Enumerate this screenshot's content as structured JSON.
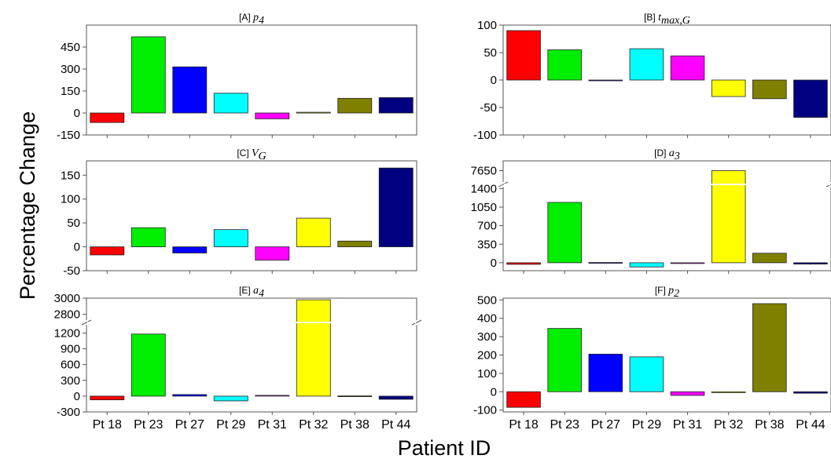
{
  "figure": {
    "ylabel": "Percentage Change",
    "xlabel": "Patient ID"
  },
  "chart_data": [
    {
      "type": "bar",
      "title": "[A] p4",
      "title_prefix": "[A]",
      "title_symbol": "p",
      "title_sub": "4",
      "categories": [
        "Pt 18",
        "Pt 23",
        "Pt 27",
        "Pt 29",
        "Pt 31",
        "Pt 32",
        "Pt 38",
        "Pt 44"
      ],
      "values": [
        -65,
        520,
        315,
        135,
        -40,
        5,
        100,
        105
      ],
      "colors": [
        "#ff0000",
        "#00ee00",
        "#0000ff",
        "#00ffff",
        "#ff00ff",
        "#ffff00",
        "#808000",
        "#000080"
      ],
      "yticks": [
        -150,
        0,
        150,
        300,
        450
      ],
      "ylim": [
        -150,
        600
      ],
      "xtick_labels_shown": false
    },
    {
      "type": "bar",
      "title": "[B] tmax,G",
      "title_prefix": "[B]",
      "title_symbol": "t",
      "title_sub": "max,G",
      "categories": [
        "Pt 18",
        "Pt 23",
        "Pt 27",
        "Pt 29",
        "Pt 31",
        "Pt 32",
        "Pt 38",
        "Pt 44"
      ],
      "values": [
        90,
        55,
        -1,
        57,
        44,
        -30,
        -34,
        -68
      ],
      "colors": [
        "#ff0000",
        "#00ee00",
        "#0000ff",
        "#00ffff",
        "#ff00ff",
        "#ffff00",
        "#808000",
        "#000080"
      ],
      "yticks": [
        -100,
        -50,
        0,
        50,
        100
      ],
      "ylim": [
        -100,
        100
      ],
      "xtick_labels_shown": false
    },
    {
      "type": "bar",
      "title": "[C] VG",
      "title_prefix": "[C]",
      "title_symbol": "V",
      "title_sub": "G",
      "categories": [
        "Pt 18",
        "Pt 23",
        "Pt 27",
        "Pt 29",
        "Pt 31",
        "Pt 32",
        "Pt 38",
        "Pt 44"
      ],
      "values": [
        -17,
        40,
        -13,
        36,
        -28,
        60,
        12,
        165
      ],
      "colors": [
        "#ff0000",
        "#00ee00",
        "#0000ff",
        "#00ffff",
        "#ff00ff",
        "#ffff00",
        "#808000",
        "#000080"
      ],
      "yticks": [
        -50,
        0,
        50,
        100,
        150
      ],
      "ylim": [
        -50,
        180
      ],
      "xtick_labels_shown": false
    },
    {
      "type": "bar",
      "title": "[D] a3",
      "title_prefix": "[D]",
      "title_symbol": "a",
      "title_sub": "3",
      "categories": [
        "Pt 18",
        "Pt 23",
        "Pt 27",
        "Pt 29",
        "Pt 31",
        "Pt 32",
        "Pt 38",
        "Pt 44"
      ],
      "values": [
        -30,
        1140,
        5,
        -80,
        -10,
        7650,
        180,
        -25
      ],
      "colors": [
        "#ff0000",
        "#00ee00",
        "#0000ff",
        "#00ffff",
        "#ff00ff",
        "#ffff00",
        "#808000",
        "#000080"
      ],
      "yticks": [
        0,
        350,
        700,
        1050,
        1400,
        7650
      ],
      "ylim": [
        -150,
        7700
      ],
      "axis_break": {
        "lower": [
          -150,
          1480
        ],
        "upper": [
          7580,
          7700
        ]
      },
      "xtick_labels_shown": false
    },
    {
      "type": "bar",
      "title": "[E] a4",
      "title_prefix": "[E]",
      "title_symbol": "a",
      "title_sub": "4",
      "categories": [
        "Pt 18",
        "Pt 23",
        "Pt 27",
        "Pt 29",
        "Pt 31",
        "Pt 32",
        "Pt 38",
        "Pt 44"
      ],
      "values": [
        -70,
        1180,
        30,
        -90,
        15,
        2980,
        5,
        -60
      ],
      "colors": [
        "#ff0000",
        "#00ee00",
        "#0000ff",
        "#00ffff",
        "#ff00ff",
        "#ffff00",
        "#808000",
        "#000080"
      ],
      "yticks": [
        -300,
        0,
        300,
        600,
        900,
        1200,
        2800,
        3000
      ],
      "ylim": [
        -300,
        3000
      ],
      "axis_break": {
        "lower": [
          -300,
          1400
        ],
        "upper": [
          2700,
          3000
        ]
      },
      "xtick_labels_shown": true
    },
    {
      "type": "bar",
      "title": "[F] p2",
      "title_prefix": "[F]",
      "title_symbol": "p",
      "title_sub": "2",
      "categories": [
        "Pt 18",
        "Pt 23",
        "Pt 27",
        "Pt 29",
        "Pt 31",
        "Pt 32",
        "Pt 38",
        "Pt 44"
      ],
      "values": [
        -85,
        345,
        205,
        190,
        -20,
        -5,
        480,
        -8
      ],
      "colors": [
        "#ff0000",
        "#00ee00",
        "#0000ff",
        "#00ffff",
        "#ff00ff",
        "#ffff00",
        "#808000",
        "#000080"
      ],
      "yticks": [
        -100,
        0,
        100,
        200,
        300,
        400,
        500
      ],
      "ylim": [
        -110,
        510
      ],
      "xtick_labels_shown": true
    }
  ]
}
